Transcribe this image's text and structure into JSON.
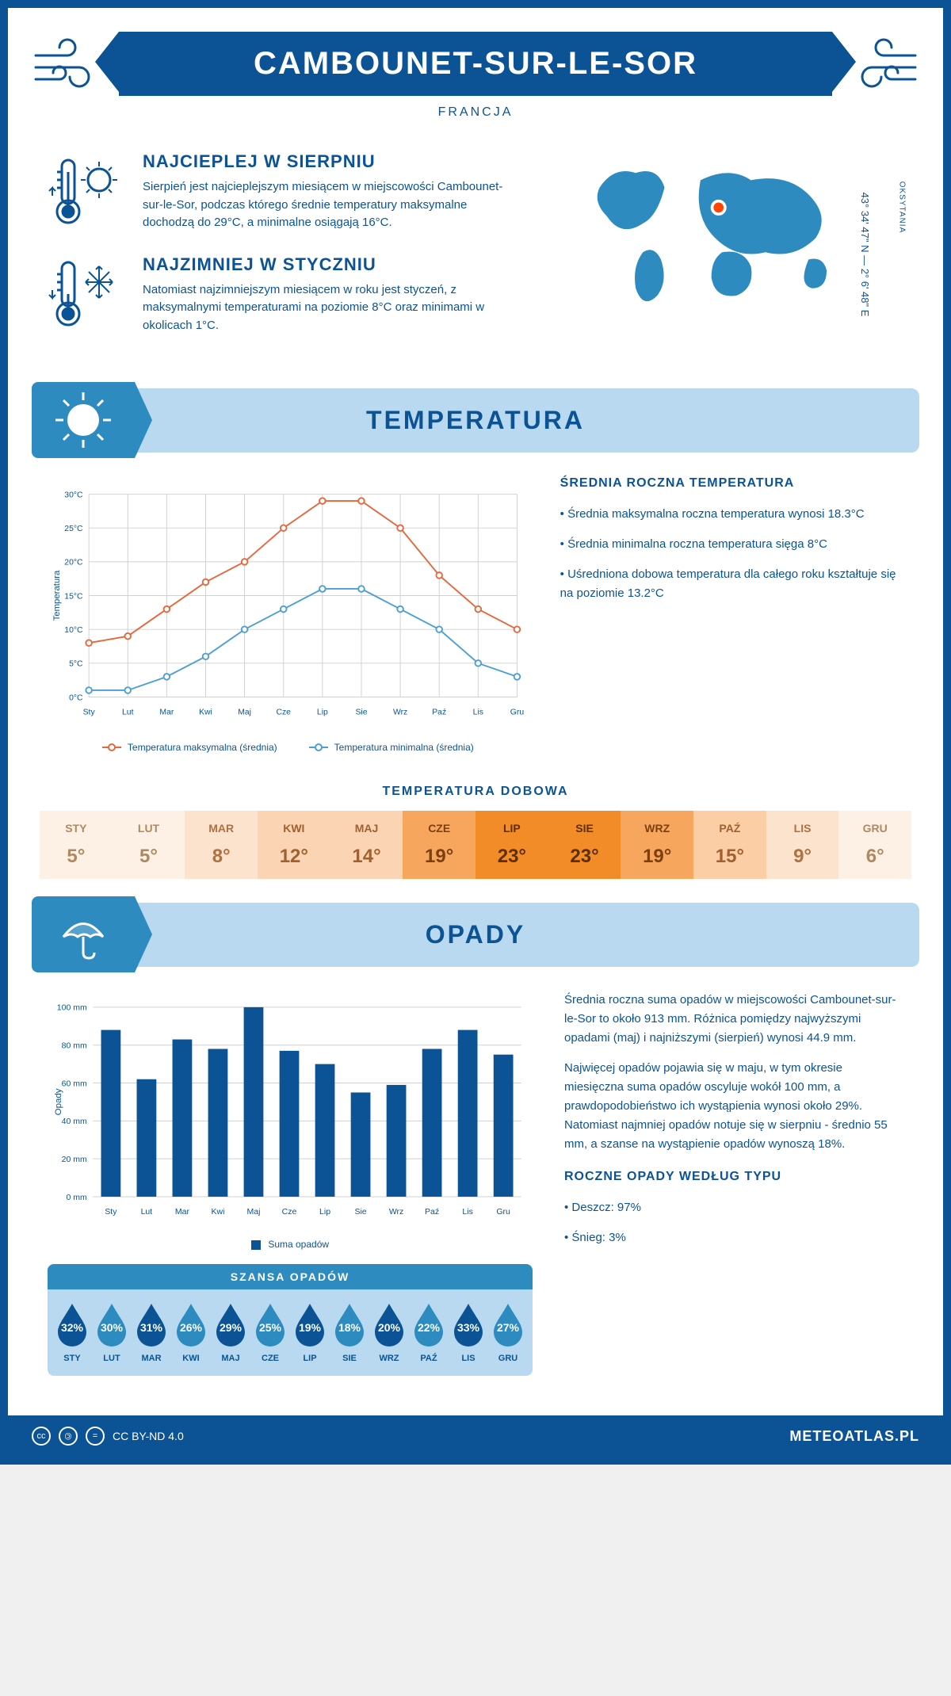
{
  "header": {
    "title": "CAMBOUNET-SUR-LE-SOR",
    "country": "FRANCJA"
  },
  "intro": {
    "hot": {
      "title": "NAJCIEPLEJ W SIERPNIU",
      "text": "Sierpień jest najcieplejszym miesiącem w miejscowości Cambounet-sur-le-Sor, podczas którego średnie temperatury maksymalne dochodzą do 29°C, a minimalne osiągają 16°C."
    },
    "cold": {
      "title": "NAJZIMNIEJ W STYCZNIU",
      "text": "Natomiast najzimniejszym miesiącem w roku jest styczeń, z maksymalnymi temperaturami na poziomie 8°C oraz minimami w okolicach 1°C."
    },
    "region": "OKSYTANIA",
    "coords": "43° 34' 47\" N — 2° 6' 48\" E",
    "marker_color": "#ff4500",
    "map_color": "#2e8bc0"
  },
  "sections": {
    "temperature": "TEMPERATURA",
    "precipitation": "OPADY"
  },
  "temp_chart": {
    "type": "line",
    "months": [
      "Sty",
      "Lut",
      "Mar",
      "Kwi",
      "Maj",
      "Cze",
      "Lip",
      "Sie",
      "Wrz",
      "Paź",
      "Lis",
      "Gru"
    ],
    "max_series": {
      "label": "Temperatura maksymalna (średnia)",
      "color": "#e8663c",
      "values": [
        8,
        9,
        13,
        17,
        20,
        25,
        29,
        29,
        25,
        18,
        13,
        10
      ]
    },
    "min_series": {
      "label": "Temperatura minimalna (średnia)",
      "color": "#4b9fd5",
      "values": [
        1,
        1,
        3,
        6,
        10,
        13,
        16,
        16,
        13,
        10,
        5,
        3
      ]
    },
    "ylim": [
      0,
      30
    ],
    "ytick_step": 5,
    "y_unit": "°C",
    "y_title": "Temperatura",
    "grid_color": "#d0d0d0",
    "background": "#ffffff",
    "marker": "circle",
    "marker_size": 4,
    "line_width": 2
  },
  "temp_summary": {
    "title": "ŚREDNIA ROCZNA TEMPERATURA",
    "bullet1": "• Średnia maksymalna roczna temperatura wynosi 18.3°C",
    "bullet2": "• Średnia minimalna roczna temperatura sięga 8°C",
    "bullet3": "• Uśredniona dobowa temperatura dla całego roku kształtuje się na poziomie 13.2°C"
  },
  "daily_temp": {
    "title": "TEMPERATURA DOBOWA",
    "months": [
      "STY",
      "LUT",
      "MAR",
      "KWI",
      "MAJ",
      "CZE",
      "LIP",
      "SIE",
      "WRZ",
      "PAŹ",
      "LIS",
      "GRU"
    ],
    "values": [
      "5°",
      "5°",
      "8°",
      "12°",
      "14°",
      "19°",
      "23°",
      "23°",
      "19°",
      "15°",
      "9°",
      "6°"
    ],
    "bg_colors": [
      "#fdf1e6",
      "#fdf1e6",
      "#fce3cd",
      "#fbd5b3",
      "#fbd5b3",
      "#f7a65e",
      "#f28c28",
      "#f28c28",
      "#f7a65e",
      "#fbcea6",
      "#fce3cd",
      "#fdf1e6"
    ],
    "text_colors": [
      "#b08860",
      "#b08860",
      "#b07040",
      "#a06030",
      "#a06030",
      "#7a4010",
      "#5c2e00",
      "#5c2e00",
      "#7a4010",
      "#a06030",
      "#b07040",
      "#b08860"
    ]
  },
  "precip_chart": {
    "type": "bar",
    "months": [
      "Sty",
      "Lut",
      "Mar",
      "Kwi",
      "Maj",
      "Cze",
      "Lip",
      "Sie",
      "Wrz",
      "Paź",
      "Lis",
      "Gru"
    ],
    "values": [
      88,
      62,
      83,
      78,
      100,
      77,
      70,
      55,
      59,
      78,
      88,
      75
    ],
    "ylim": [
      0,
      100
    ],
    "ytick_step": 20,
    "y_unit": " mm",
    "y_title": "Opady",
    "bar_color": "#0b5394",
    "grid_color": "#d0d0d0",
    "legend": "Suma opadów",
    "bar_width": 0.55
  },
  "precip_text": {
    "p1": "Średnia roczna suma opadów w miejscowości Cambounet-sur-le-Sor to około 913 mm. Różnica pomiędzy najwyższymi opadami (maj) i najniższymi (sierpień) wynosi 44.9 mm.",
    "p2": "Najwięcej opadów pojawia się w maju, w tym okresie miesięczna suma opadów oscyluje wokół 100 mm, a prawdopodobieństwo ich wystąpienia wynosi około 29%. Natomiast najmniej opadów notuje się w sierpniu - średnio 55 mm, a szanse na wystąpienie opadów wynoszą 18%.",
    "type_title": "ROCZNE OPADY WEDŁUG TYPU",
    "type1": "• Deszcz: 97%",
    "type2": "• Śnieg: 3%"
  },
  "rain_chance": {
    "title": "SZANSA OPADÓW",
    "months": [
      "STY",
      "LUT",
      "MAR",
      "KWI",
      "MAJ",
      "CZE",
      "LIP",
      "SIE",
      "WRZ",
      "PAŹ",
      "LIS",
      "GRU"
    ],
    "pct": [
      "32%",
      "30%",
      "31%",
      "26%",
      "29%",
      "25%",
      "19%",
      "18%",
      "20%",
      "22%",
      "33%",
      "27%"
    ],
    "drop_fill": "#0b5394",
    "drop_fill_light": "#2e8bc0"
  },
  "footer": {
    "license": "CC BY-ND 4.0",
    "site": "METEOATLAS.PL"
  },
  "palette": {
    "primary": "#0b5394",
    "accent": "#2e8bc0",
    "light": "#b8d9f0"
  }
}
